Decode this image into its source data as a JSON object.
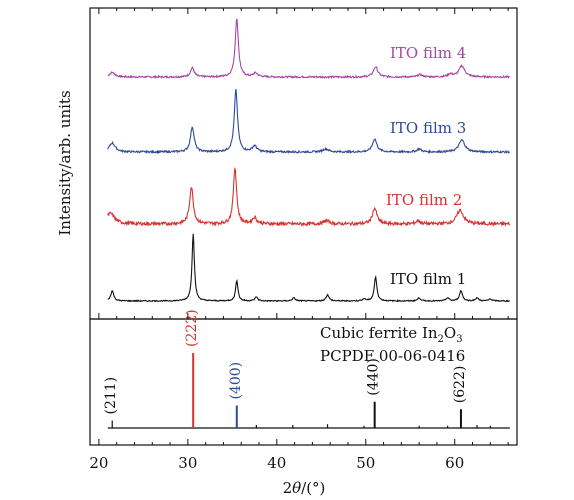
{
  "chart_data": {
    "type": "line",
    "xlabel_parts": [
      "2",
      "θ",
      "/(°)"
    ],
    "ylabel": "Intensity/arb. units",
    "xlim": [
      19,
      67
    ],
    "xticks": [
      20,
      30,
      40,
      50,
      60
    ],
    "grid": false,
    "series": [
      {
        "name": "ITO film 4",
        "color": "#a646a0",
        "baseline": 0.0,
        "noise": 0.18,
        "peaks": [
          {
            "x": 21.5,
            "h": 0.5,
            "w": 0.35
          },
          {
            "x": 30.5,
            "h": 1.0,
            "w": 0.25
          },
          {
            "x": 35.5,
            "h": 6.3,
            "w": 0.22
          },
          {
            "x": 37.6,
            "h": 0.4,
            "w": 0.3
          },
          {
            "x": 51.1,
            "h": 1.1,
            "w": 0.3
          },
          {
            "x": 56.1,
            "h": 0.25,
            "w": 0.3
          },
          {
            "x": 59.5,
            "h": 0.3,
            "w": 0.3
          },
          {
            "x": 60.8,
            "h": 1.2,
            "w": 0.4
          }
        ]
      },
      {
        "name": "ITO film 3",
        "color": "#2c4b9c",
        "baseline": 0.0,
        "noise": 0.18,
        "peaks": [
          {
            "x": 21.5,
            "h": 0.9,
            "w": 0.4
          },
          {
            "x": 30.5,
            "h": 2.5,
            "w": 0.25
          },
          {
            "x": 35.4,
            "h": 6.2,
            "w": 0.22
          },
          {
            "x": 37.5,
            "h": 0.6,
            "w": 0.3
          },
          {
            "x": 45.5,
            "h": 0.3,
            "w": 0.4
          },
          {
            "x": 51.0,
            "h": 1.3,
            "w": 0.3
          },
          {
            "x": 56.0,
            "h": 0.3,
            "w": 0.3
          },
          {
            "x": 60.8,
            "h": 1.2,
            "w": 0.4
          }
        ]
      },
      {
        "name": "ITO film 2",
        "color": "#d8322f",
        "baseline": 0.0,
        "noise": 0.3,
        "peaks": [
          {
            "x": 21.3,
            "h": 1.0,
            "w": 0.55
          },
          {
            "x": 30.4,
            "h": 3.5,
            "w": 0.25
          },
          {
            "x": 35.3,
            "h": 5.3,
            "w": 0.22
          },
          {
            "x": 37.5,
            "h": 0.6,
            "w": 0.3
          },
          {
            "x": 45.6,
            "h": 0.3,
            "w": 0.4
          },
          {
            "x": 51.0,
            "h": 1.5,
            "w": 0.3
          },
          {
            "x": 55.9,
            "h": 0.3,
            "w": 0.3
          },
          {
            "x": 60.6,
            "h": 1.3,
            "w": 0.45
          }
        ]
      },
      {
        "name": "ITO film 1",
        "color": "#111111",
        "baseline": 0.0,
        "noise": 0.1,
        "peaks": [
          {
            "x": 21.5,
            "h": 1.0,
            "w": 0.2
          },
          {
            "x": 30.6,
            "h": 6.5,
            "w": 0.16
          },
          {
            "x": 35.5,
            "h": 2.0,
            "w": 0.16
          },
          {
            "x": 37.7,
            "h": 0.4,
            "w": 0.18
          },
          {
            "x": 41.9,
            "h": 0.3,
            "w": 0.2
          },
          {
            "x": 45.7,
            "h": 0.6,
            "w": 0.2
          },
          {
            "x": 49.8,
            "h": 0.2,
            "w": 0.2
          },
          {
            "x": 51.1,
            "h": 2.3,
            "w": 0.18
          },
          {
            "x": 56.0,
            "h": 0.3,
            "w": 0.2
          },
          {
            "x": 59.2,
            "h": 0.3,
            "w": 0.2
          },
          {
            "x": 60.7,
            "h": 1.0,
            "w": 0.2
          },
          {
            "x": 62.5,
            "h": 0.3,
            "w": 0.2
          },
          {
            "x": 64.0,
            "h": 0.2,
            "w": 0.2
          }
        ]
      }
    ],
    "reference": {
      "line1_prefix": "Cubic ferrite In",
      "line1_sub1": "2",
      "line1_mid": "O",
      "line1_sub2": "3",
      "line2": "PCPDF 00-06-0416",
      "sticks": [
        {
          "x": 21.5,
          "h": 10,
          "label": "(211)",
          "color": "#111111"
        },
        {
          "x": 30.6,
          "h": 100,
          "label": "(222)",
          "color": "#d8322f"
        },
        {
          "x": 35.5,
          "h": 30,
          "label": "(400)",
          "color": "#2c4b9c"
        },
        {
          "x": 37.7,
          "h": 4,
          "label": "",
          "color": "#111111"
        },
        {
          "x": 41.8,
          "h": 4,
          "label": "",
          "color": "#111111"
        },
        {
          "x": 45.7,
          "h": 5,
          "label": "",
          "color": "#111111"
        },
        {
          "x": 49.8,
          "h": 3,
          "label": "",
          "color": "#111111"
        },
        {
          "x": 51.0,
          "h": 35,
          "label": "(440)",
          "color": "#111111"
        },
        {
          "x": 56.0,
          "h": 3,
          "label": "",
          "color": "#111111"
        },
        {
          "x": 59.2,
          "h": 3,
          "label": "",
          "color": "#111111"
        },
        {
          "x": 60.7,
          "h": 25,
          "label": "(622)",
          "color": "#111111"
        },
        {
          "x": 62.5,
          "h": 4,
          "label": "",
          "color": "#111111"
        },
        {
          "x": 64.0,
          "h": 3,
          "label": "",
          "color": "#111111"
        }
      ]
    }
  }
}
